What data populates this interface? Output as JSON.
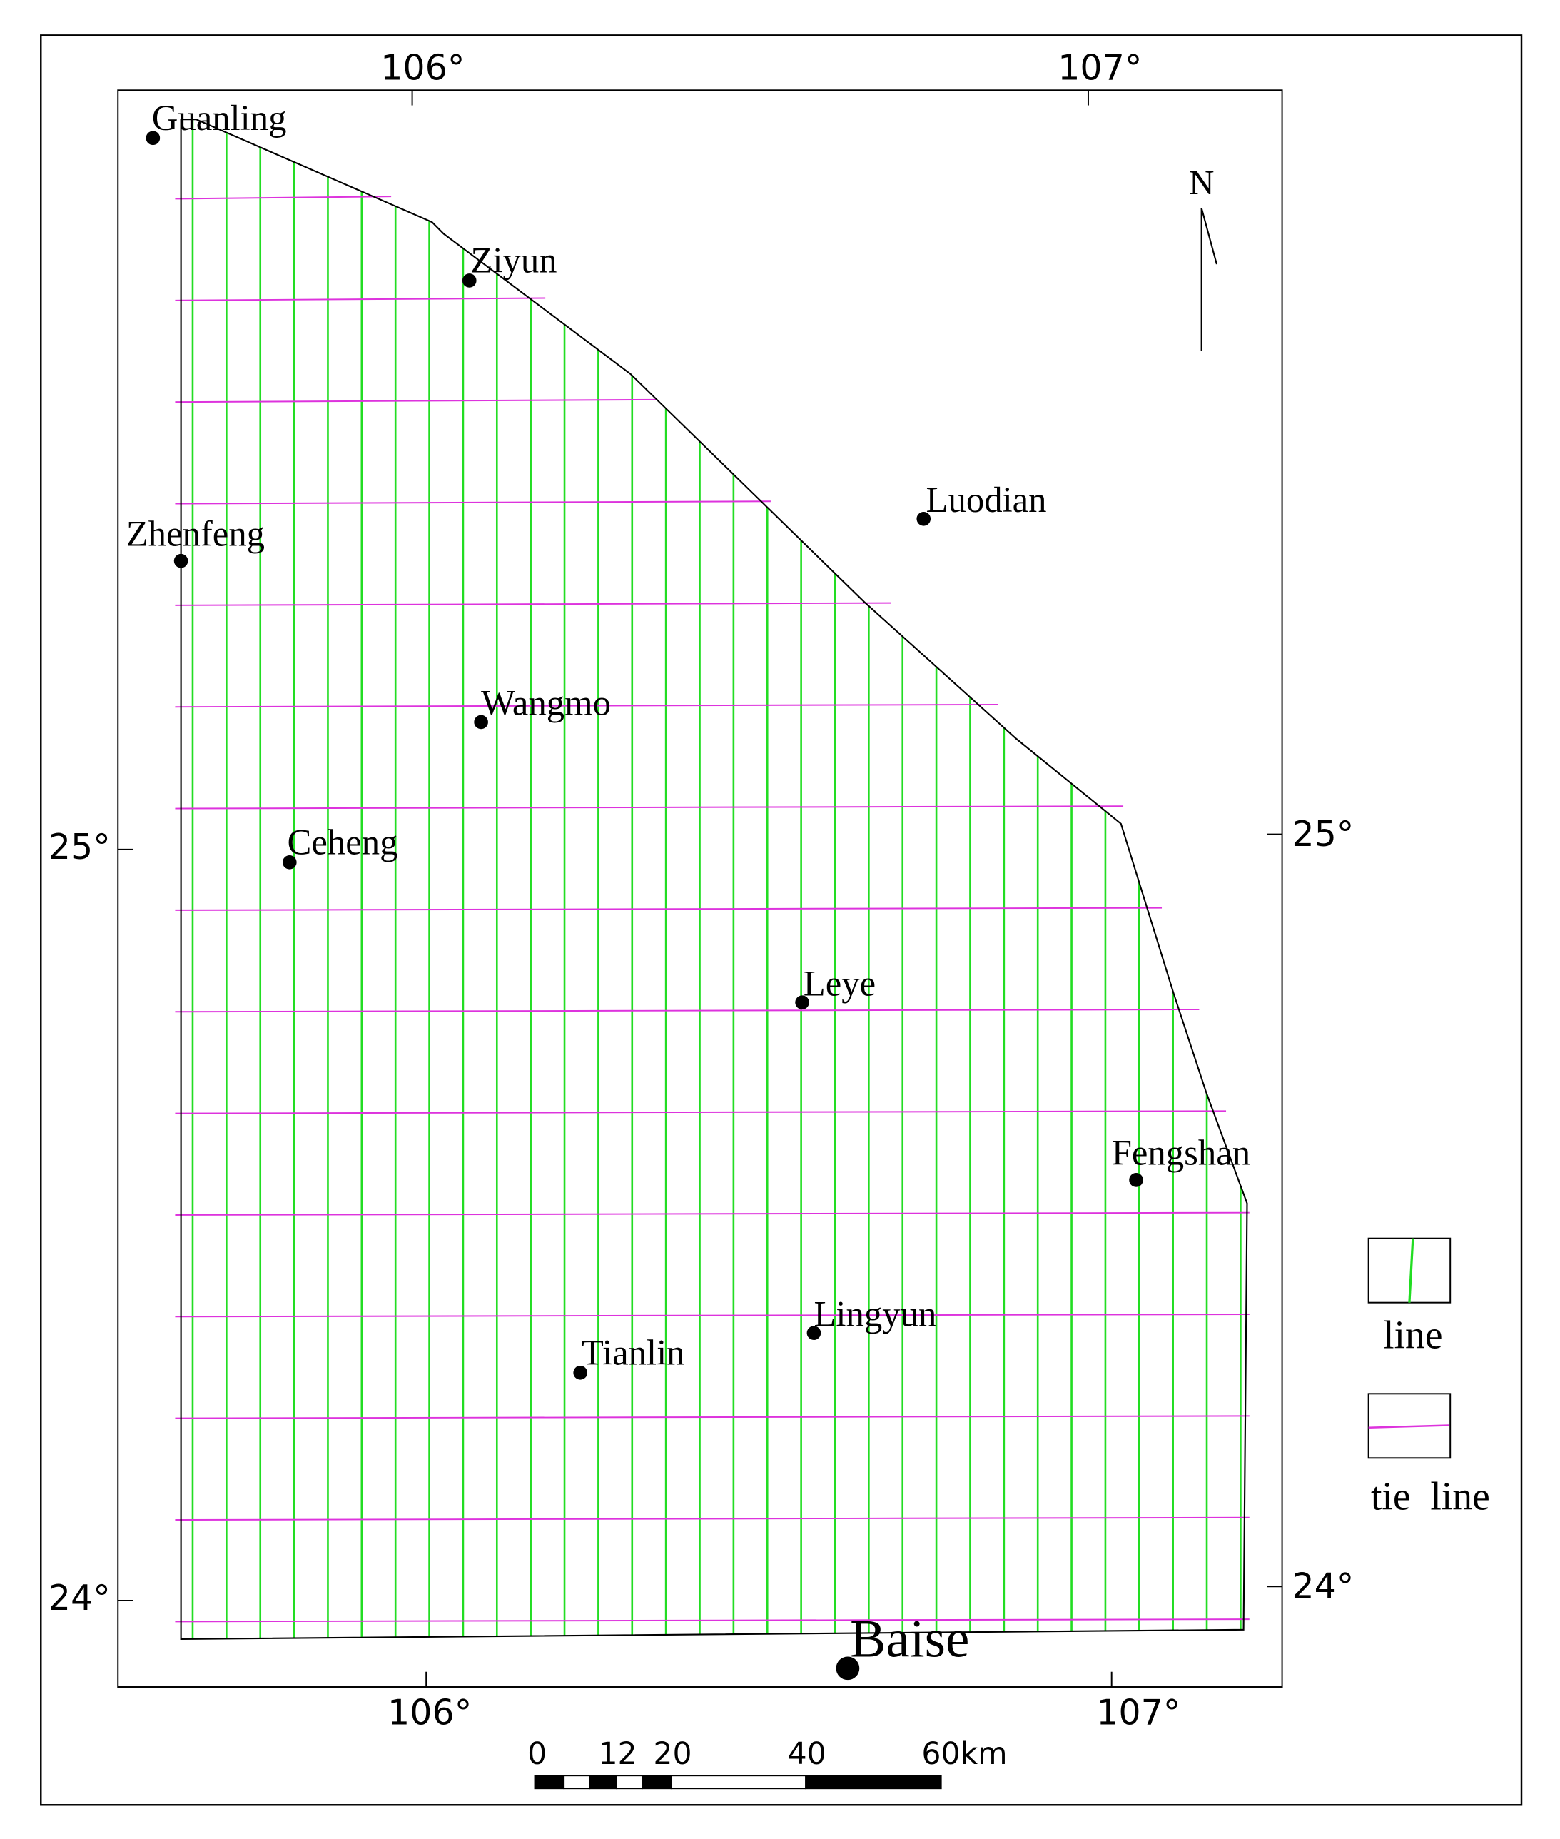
{
  "map": {
    "degree_labels": {
      "top": [
        "106°",
        "107°"
      ],
      "bottom": [
        "106°",
        "107°"
      ],
      "left": [
        "25°",
        "24°"
      ],
      "right": [
        "25°",
        "24°"
      ]
    },
    "north": "N",
    "cities": [
      "Guanling",
      "Ziyun",
      "Luodian",
      "Zhenfeng",
      "Wangmo",
      "Ceheng",
      "Leye",
      "Fengshan",
      "Lingyun",
      "Tianlin",
      "Baise"
    ],
    "legend": [
      "line",
      "tie  line"
    ],
    "scale": [
      "0",
      "12",
      "20",
      "40",
      "60km"
    ]
  }
}
